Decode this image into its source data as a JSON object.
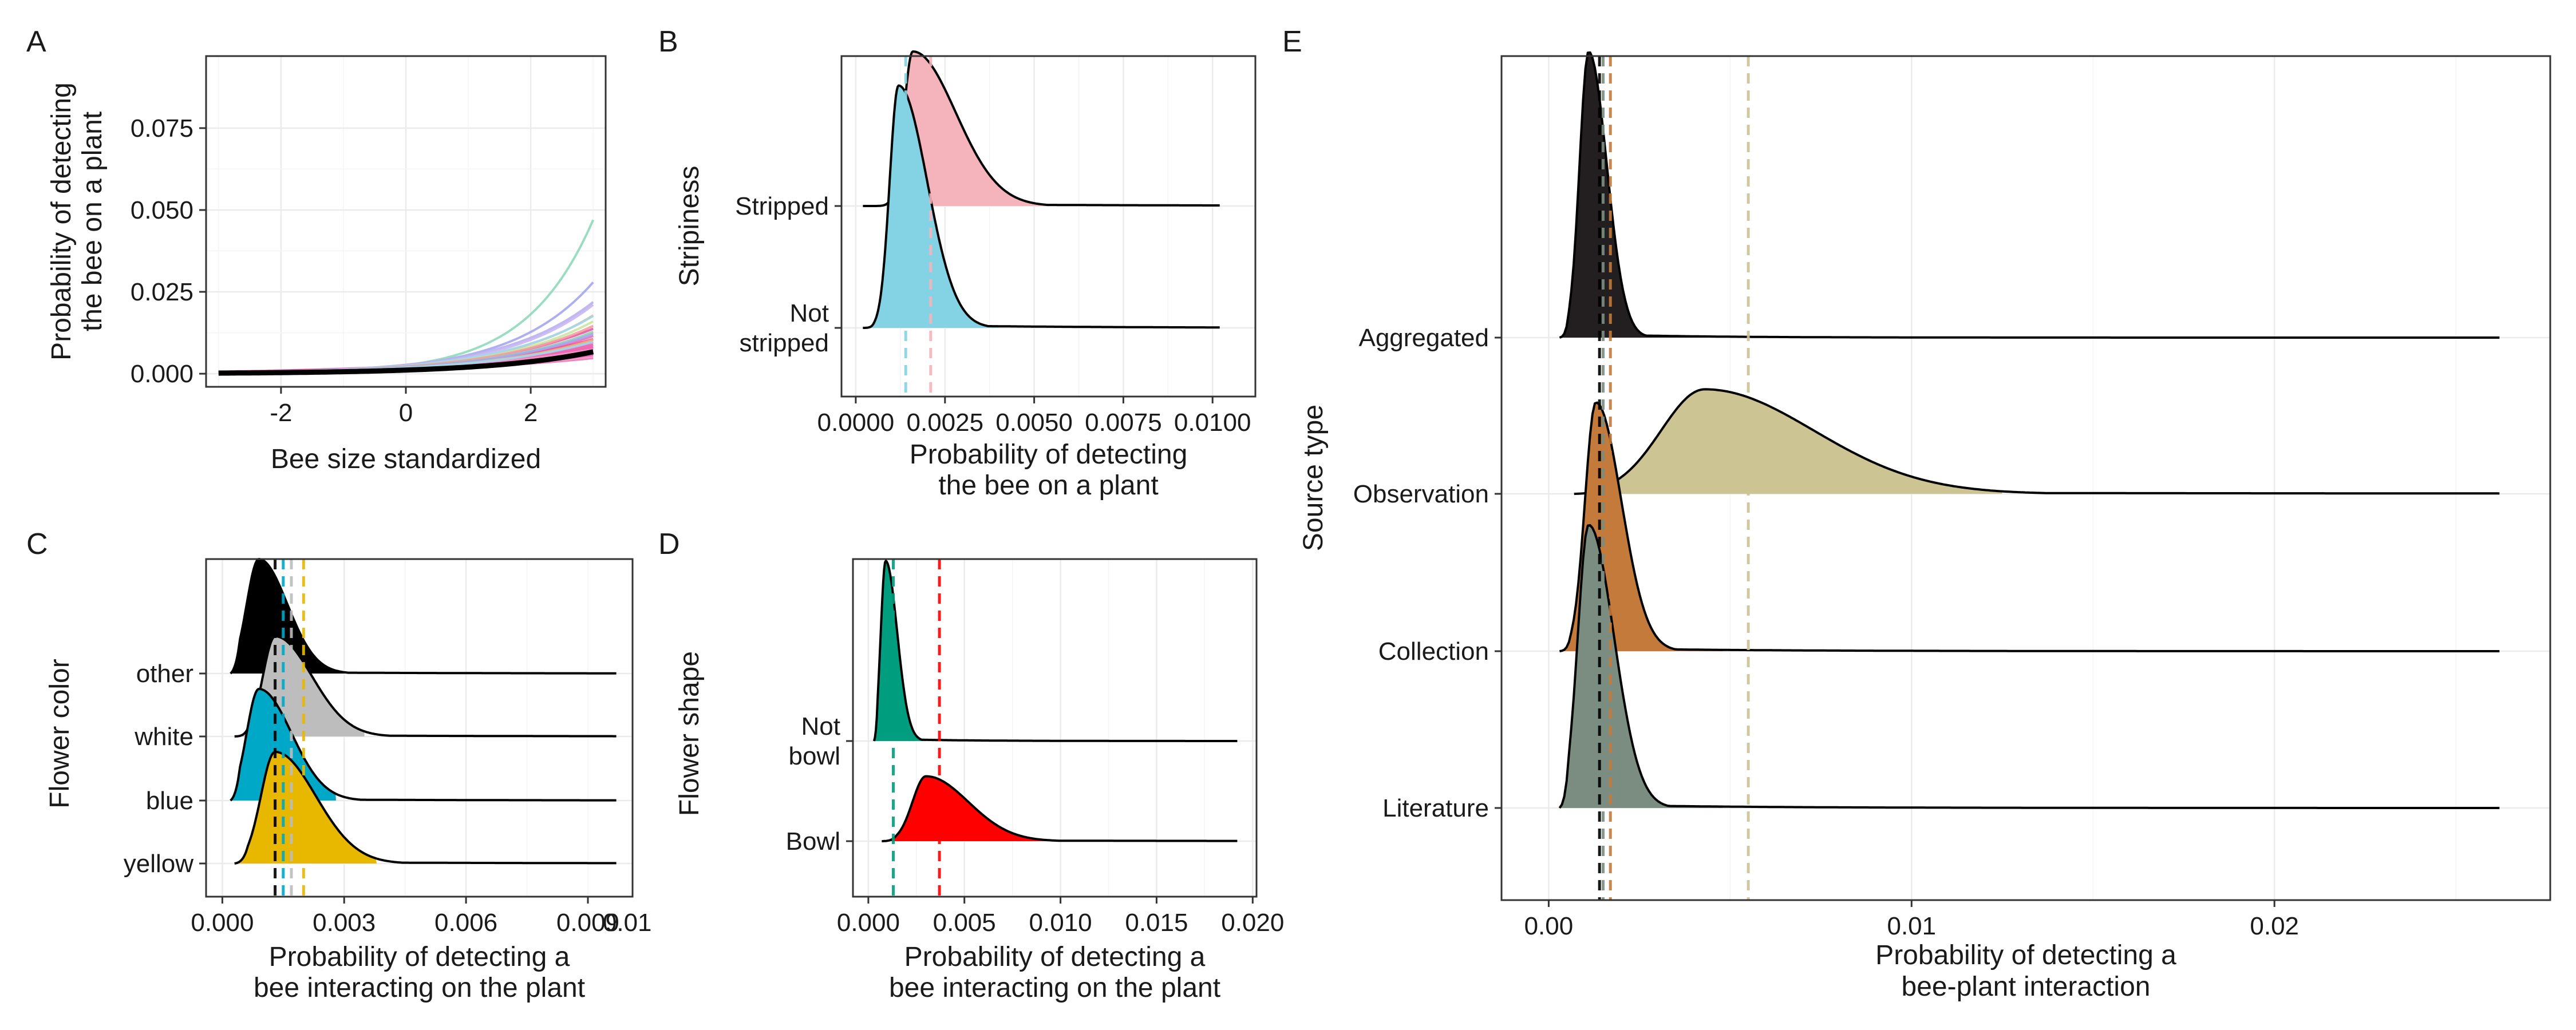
{
  "chart_data": [
    {
      "panel": "A",
      "type": "line",
      "xlabel": "Bee size standardized",
      "ylabel": [
        "Probability of detecting",
        "the bee on a plant"
      ],
      "xlim": [
        -3.2,
        3.2
      ],
      "ylim": [
        -0.004,
        0.097
      ],
      "x_ticks": [
        -2,
        0,
        2
      ],
      "x_tick_labels": [
        "-2",
        "0",
        "2"
      ],
      "y_ticks": [
        0,
        0.025,
        0.05,
        0.075
      ],
      "y_tick_labels": [
        "0.000",
        "0.025",
        "0.050",
        "0.075"
      ],
      "x_range": [
        -3,
        3
      ],
      "curve_model": "logistic",
      "mean_curve": {
        "intercept_logit": -6.8,
        "slope": 0.6,
        "color": "#000000"
      },
      "curve_colors": [
        "#f06bb4",
        "#e85aa8",
        "#f07fc0",
        "#ea4f9e",
        "#f39bcc",
        "#ef6fb6",
        "#e8559f",
        "#f284c3",
        "#8fd9bb",
        "#a5a6ee",
        "#b9b0f0",
        "#f2b36e",
        "#9fd9f0",
        "#c8e6a0",
        "#f2a0a0"
      ],
      "series": [
        {
          "intercept_logit": -5.95,
          "slope": 0.98,
          "color": "#8fd9bb"
        },
        {
          "intercept_logit": -5.95,
          "slope": 0.8,
          "color": "#a5a6ee"
        },
        {
          "intercept_logit": -5.9,
          "slope": 0.7,
          "color": "#b9b0f0"
        },
        {
          "intercept_logit": -6.0,
          "slope": 0.72,
          "color": "#c8b6f2"
        },
        {
          "intercept_logit": -6.05,
          "slope": 0.68,
          "color": "#f2b36e"
        },
        {
          "intercept_logit": -6.0,
          "slope": 0.66,
          "color": "#9fd9f0"
        },
        {
          "intercept_logit": -6.1,
          "slope": 0.66,
          "color": "#c8e6a0"
        },
        {
          "intercept_logit": -6.1,
          "slope": 0.63,
          "color": "#f2a0a0"
        },
        {
          "intercept_logit": -6.2,
          "slope": 0.62,
          "color": "#8fd9bb"
        },
        {
          "intercept_logit": -6.2,
          "slope": 0.6,
          "color": "#a5a6ee"
        },
        {
          "intercept_logit": -6.3,
          "slope": 0.58,
          "color": "#f2b36e"
        },
        {
          "intercept_logit": -6.3,
          "slope": 0.56,
          "color": "#9fd9f0"
        }
      ],
      "band": {
        "color": "#ef5aa9",
        "n_lines": 28,
        "intercept_logit_range": [
          -6.6,
          -6.0
        ],
        "slope_range": [
          0.42,
          0.62
        ]
      }
    },
    {
      "panel": "B",
      "type": "density_ridgeline",
      "xlabel": [
        "Probability of detecting",
        "the bee on a plant"
      ],
      "ylabel": "Stripiness",
      "xlim": [
        -0.0004,
        0.0112
      ],
      "x_ticks": [
        0,
        0.0025,
        0.005,
        0.0075,
        0.01
      ],
      "x_tick_labels": [
        "0.0000",
        "0.0025",
        "0.0050",
        "0.0075",
        "0.0100"
      ],
      "groups": [
        {
          "label": [
            "Stripped"
          ],
          "color": "#f5b4bb",
          "mode": 0.0016,
          "left_sd": 0.00025,
          "right_sd": 0.0012,
          "height": 1.0,
          "min": 0.0002,
          "max": 0.0102,
          "fill_end": 0.0058,
          "mean": 0.0021
        },
        {
          "label": [
            "Not",
            "stripped"
          ],
          "color": "#84d3e4",
          "mode": 0.0012,
          "left_sd": 0.00025,
          "right_sd": 0.0008,
          "height": 1.1,
          "min": 0.0002,
          "max": 0.0102,
          "fill_end": 0.004,
          "mean": 0.0014
        }
      ]
    },
    {
      "panel": "C",
      "type": "density_ridgeline",
      "xlabel": [
        "Probability of detecting a",
        "bee interacting on the plant"
      ],
      "ylabel": "Flower color",
      "xlim": [
        -0.0004,
        0.0101
      ],
      "x_ticks": [
        0,
        0.003,
        0.006,
        0.009
      ],
      "x_tick_labels": [
        "0.000",
        "0.003",
        "0.006",
        "0.009"
      ],
      "extra_tick_label": "0.01",
      "groups": [
        {
          "label": [
            "other"
          ],
          "color": "#000000",
          "mode": 0.0009,
          "left_sd": 0.0003,
          "right_sd": 0.0007,
          "height": 1.0,
          "min": 0.0002,
          "max": 0.0097,
          "fill_end": 0.0032,
          "mean": 0.0013
        },
        {
          "label": [
            "white"
          ],
          "color": "#bdbdbd",
          "mode": 0.0013,
          "left_sd": 0.0003,
          "right_sd": 0.0009,
          "height": 1.0,
          "min": 0.0003,
          "max": 0.0097,
          "fill_end": 0.0035,
          "mean": 0.0017
        },
        {
          "label": [
            "blue"
          ],
          "color": "#00a8c8",
          "mode": 0.0009,
          "left_sd": 0.0003,
          "right_sd": 0.0008,
          "height": 1.0,
          "min": 0.0002,
          "max": 0.0097,
          "fill_end": 0.0028,
          "mean": 0.0015
        },
        {
          "label": [
            "yellow"
          ],
          "color": "#e8b800",
          "mode": 0.0013,
          "left_sd": 0.00035,
          "right_sd": 0.001,
          "height": 1.0,
          "min": 0.0003,
          "max": 0.0097,
          "fill_end": 0.0038,
          "mean": 0.002
        }
      ]
    },
    {
      "panel": "D",
      "type": "density_ridgeline",
      "xlabel": [
        "Probability of detecting a",
        "bee interacting on the plant"
      ],
      "ylabel": "Flower shape",
      "xlim": [
        -0.0008,
        0.0202
      ],
      "x_ticks": [
        0,
        0.005,
        0.01,
        0.015,
        0.02
      ],
      "x_tick_labels": [
        "0.000",
        "0.005",
        "0.010",
        "0.015",
        "0.020"
      ],
      "groups": [
        {
          "label": [
            "Not",
            "bowl"
          ],
          "color": "#009e7e",
          "mode": 0.0009,
          "left_sd": 0.00025,
          "right_sd": 0.0006,
          "height": 1.0,
          "min": 0.0003,
          "max": 0.0192,
          "fill_end": 0.003,
          "mean": 0.0013
        },
        {
          "label": [
            "Bowl"
          ],
          "color": "#ff0000",
          "mode": 0.003,
          "left_sd": 0.0007,
          "right_sd": 0.0022,
          "height": 0.36,
          "min": 0.0007,
          "max": 0.0192,
          "fill_end": 0.0095,
          "mean": 0.0037
        }
      ]
    },
    {
      "panel": "E",
      "type": "density_ridgeline",
      "xlabel": [
        "Probability of detecting a",
        "bee-plant interaction"
      ],
      "ylabel": "Source type",
      "xlim": [
        -0.0013,
        0.0276
      ],
      "x_ticks": [
        0,
        0.01,
        0.02
      ],
      "x_tick_labels": [
        "0.00",
        "0.01",
        "0.02"
      ],
      "groups": [
        {
          "label": [
            "Aggregated"
          ],
          "color": "#231f20",
          "mode": 0.0011,
          "left_sd": 0.00025,
          "right_sd": 0.0005,
          "height": 1.0,
          "min": 0.0003,
          "max": 0.0262,
          "fill_end": 0.0045,
          "mean": 0.0014
        },
        {
          "label": [
            "Observation"
          ],
          "color": "#cdc493",
          "mode": 0.0043,
          "left_sd": 0.0012,
          "right_sd": 0.003,
          "height": 0.42,
          "min": 0.0007,
          "max": 0.0262,
          "fill_end": 0.0125,
          "mean": 0.0055
        },
        {
          "label": [
            "Collection"
          ],
          "color": "#c47a3a",
          "mode": 0.0013,
          "left_sd": 0.0003,
          "right_sd": 0.0007,
          "height": 1.0,
          "min": 0.0003,
          "max": 0.0262,
          "fill_end": 0.0048,
          "mean": 0.0017
        },
        {
          "label": [
            "Literature"
          ],
          "color": "#7a8d80",
          "mode": 0.0011,
          "left_sd": 0.0003,
          "right_sd": 0.0007,
          "height": 1.0,
          "min": 0.0003,
          "max": 0.0262,
          "fill_end": 0.0048,
          "mean": 0.0015
        }
      ]
    }
  ]
}
